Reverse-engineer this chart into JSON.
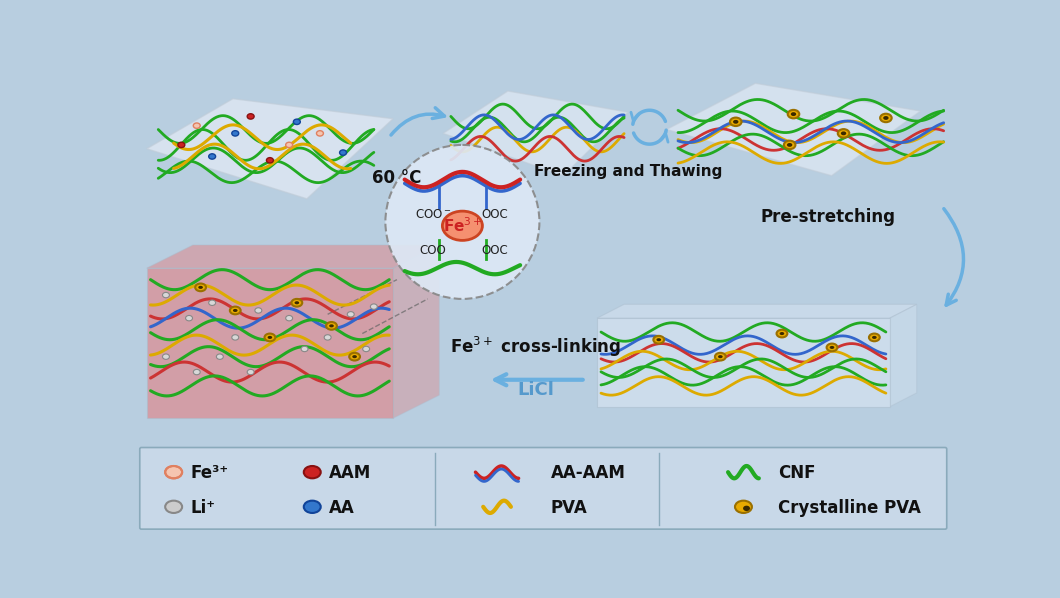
{
  "bg_color": "#b8cee0",
  "legend_items": [
    {
      "label": "Fe³⁺",
      "type": "circle_outline",
      "color": "#f5c5b0",
      "edge_color": "#e08060",
      "row": 0,
      "col": 0
    },
    {
      "label": "AAM",
      "type": "circle_solid",
      "color": "#cc2222",
      "edge_color": "#881111",
      "row": 0,
      "col": 1
    },
    {
      "label": "AA-AAM",
      "type": "wave_rb",
      "row": 0,
      "col": 2
    },
    {
      "label": "CNF",
      "type": "wave_green",
      "row": 0,
      "col": 3
    },
    {
      "label": "Li⁺",
      "type": "circle_gray",
      "color": "#cccccc",
      "edge_color": "#888888",
      "row": 1,
      "col": 0
    },
    {
      "label": "AA",
      "type": "circle_solid",
      "color": "#3377cc",
      "edge_color": "#114499",
      "row": 1,
      "col": 1
    },
    {
      "label": "PVA",
      "type": "wave_yellow",
      "row": 1,
      "col": 2
    },
    {
      "label": "Crystalline PVA",
      "type": "cryst_pva",
      "row": 1,
      "col": 3
    }
  ]
}
